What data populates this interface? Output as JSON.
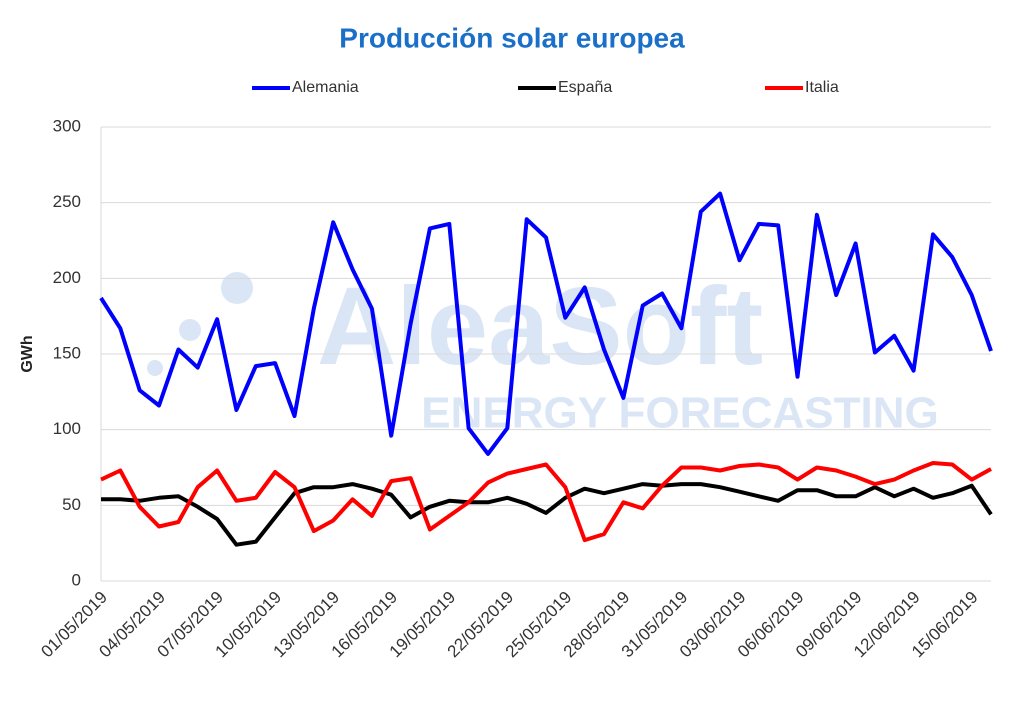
{
  "chart_data": {
    "type": "line",
    "title": "Producción solar europea",
    "y_label": "GWh",
    "watermark": [
      "AleaSoft",
      "ENERGY FORECASTING"
    ],
    "categories": [
      "01/05/2019",
      null,
      null,
      "04/05/2019",
      null,
      null,
      "07/05/2019",
      null,
      null,
      "10/05/2019",
      null,
      null,
      "13/05/2019",
      null,
      null,
      "16/05/2019",
      null,
      null,
      "19/05/2019",
      null,
      null,
      "22/05/2019",
      null,
      null,
      "25/05/2019",
      null,
      null,
      "28/05/2019",
      null,
      null,
      "31/05/2019",
      null,
      null,
      "03/06/2019",
      null,
      null,
      "06/06/2019",
      null,
      null,
      "09/06/2019",
      null,
      null,
      "12/06/2019",
      null,
      null,
      "15/06/2019",
      null
    ],
    "series": [
      {
        "name": "Alemania",
        "color": "#0000ff",
        "values": [
          187,
          167,
          126,
          116,
          153,
          141,
          173,
          113,
          142,
          144,
          109,
          180,
          237,
          206,
          180,
          96,
          170,
          233,
          236,
          101,
          84,
          101,
          239,
          227,
          174,
          194,
          153,
          121,
          182,
          190,
          167,
          244,
          256,
          212,
          236,
          235,
          135,
          242,
          189,
          223,
          151,
          162,
          139,
          229,
          214,
          189,
          152
        ]
      },
      {
        "name": "España",
        "color": "#000000",
        "values": [
          54,
          54,
          53,
          55,
          56,
          49,
          41,
          24,
          26,
          42,
          58,
          62,
          62,
          64,
          61,
          57,
          42,
          49,
          53,
          52,
          52,
          55,
          51,
          45,
          55,
          61,
          58,
          61,
          64,
          63,
          64,
          64,
          62,
          59,
          56,
          53,
          60,
          60,
          56,
          56,
          62,
          56,
          61,
          55,
          58,
          63,
          44
        ]
      },
      {
        "name": "Italia",
        "color": "#ff0000",
        "values": [
          67,
          73,
          49,
          36,
          39,
          62,
          73,
          53,
          55,
          72,
          62,
          33,
          40,
          54,
          43,
          66,
          68,
          34,
          43,
          52,
          65,
          71,
          74,
          77,
          62,
          27,
          31,
          52,
          48,
          63,
          75,
          75,
          73,
          76,
          77,
          75,
          67,
          75,
          73,
          69,
          64,
          67,
          73,
          78,
          77,
          67,
          74
        ]
      }
    ],
    "ylim": [
      0,
      300
    ],
    "yticks": [
      0,
      50,
      100,
      150,
      200,
      250,
      300
    ],
    "grid": true
  }
}
